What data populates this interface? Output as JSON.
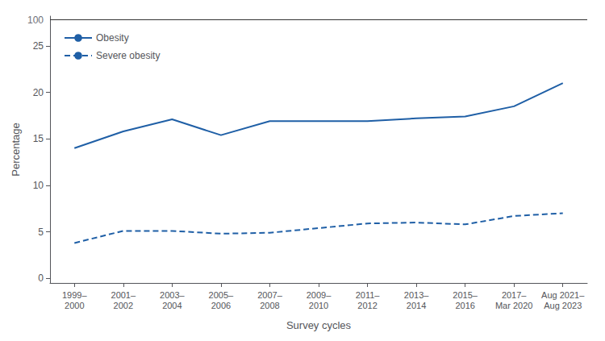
{
  "chart_data": {
    "type": "line",
    "categories": [
      "1999–\n2000",
      "2001–\n2002",
      "2003–\n2004",
      "2005–\n2006",
      "2007–\n2008",
      "2009–\n2010",
      "2011–\n2012",
      "2013–\n2014",
      "2015–\n2016",
      "2017–\nMar 2020",
      "Aug 2021–\nAug 2023"
    ],
    "series": [
      {
        "name": "Obesity",
        "color": "#1f5fa6",
        "line_style": "solid",
        "values": [
          14.0,
          15.8,
          17.1,
          15.4,
          16.9,
          16.9,
          16.9,
          17.2,
          17.4,
          18.5,
          21.0
        ]
      },
      {
        "name": "Severe obesity",
        "color": "#1f5fa6",
        "line_style": "dashed",
        "values": [
          3.8,
          5.1,
          5.1,
          4.8,
          4.9,
          5.4,
          5.9,
          6.0,
          5.8,
          6.7,
          7.0
        ]
      }
    ],
    "xlabel": "Survey cycles",
    "ylabel": "Percentage",
    "ylim": [
      -0.5,
      28.2
    ],
    "yticks": [
      0,
      5,
      10,
      15,
      20,
      25
    ],
    "annotations": [
      {
        "text": "100",
        "y": 27.8
      }
    ],
    "legend": "upper left",
    "grid": false
  }
}
